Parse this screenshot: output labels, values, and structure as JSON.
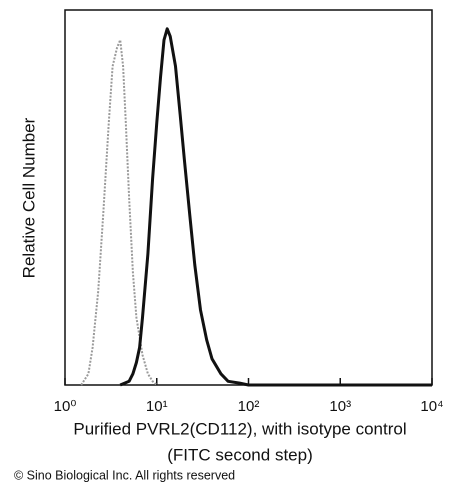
{
  "chart_data": {
    "type": "line",
    "xlabel": [
      "Purified PVRL2(CD112), with isotype control",
      "(FITC second step)"
    ],
    "ylabel": "Relative Cell Number",
    "footer": "© Sino Biological Inc. All rights reserved",
    "xscale": "log",
    "xlim": [
      1,
      10000
    ],
    "ylim": [
      0,
      100
    ],
    "xticks": [
      {
        "value": 1,
        "label": "10⁰"
      },
      {
        "value": 10,
        "label": "10¹"
      },
      {
        "value": 100,
        "label": "10²"
      },
      {
        "value": 1000,
        "label": "10³"
      },
      {
        "value": 10000,
        "label": "10⁴"
      }
    ],
    "series": [
      {
        "color": "#9a9a9a",
        "dashed": true,
        "x": [
          1.5,
          1.8,
          2,
          2.3,
          2.6,
          3,
          3.3,
          3.7,
          4,
          4.3,
          4.6,
          5,
          5.5,
          6,
          7,
          8,
          9,
          10
        ],
        "values": [
          0,
          3,
          10,
          25,
          45,
          70,
          85,
          90,
          92,
          85,
          70,
          50,
          30,
          18,
          8,
          3,
          1,
          0
        ]
      },
      {
        "color": "#111111",
        "dashed": false,
        "x": [
          4,
          5,
          5.5,
          6,
          6.5,
          7,
          8,
          9,
          10,
          11,
          12,
          13,
          14,
          16,
          18,
          20,
          23,
          26,
          30,
          35,
          40,
          50,
          60,
          80,
          100,
          1000,
          10000
        ],
        "values": [
          0,
          1,
          3,
          6,
          10,
          18,
          35,
          55,
          70,
          82,
          92,
          95,
          93,
          85,
          72,
          60,
          45,
          32,
          20,
          12,
          7,
          3,
          1,
          0.5,
          0,
          0,
          0
        ]
      }
    ]
  }
}
